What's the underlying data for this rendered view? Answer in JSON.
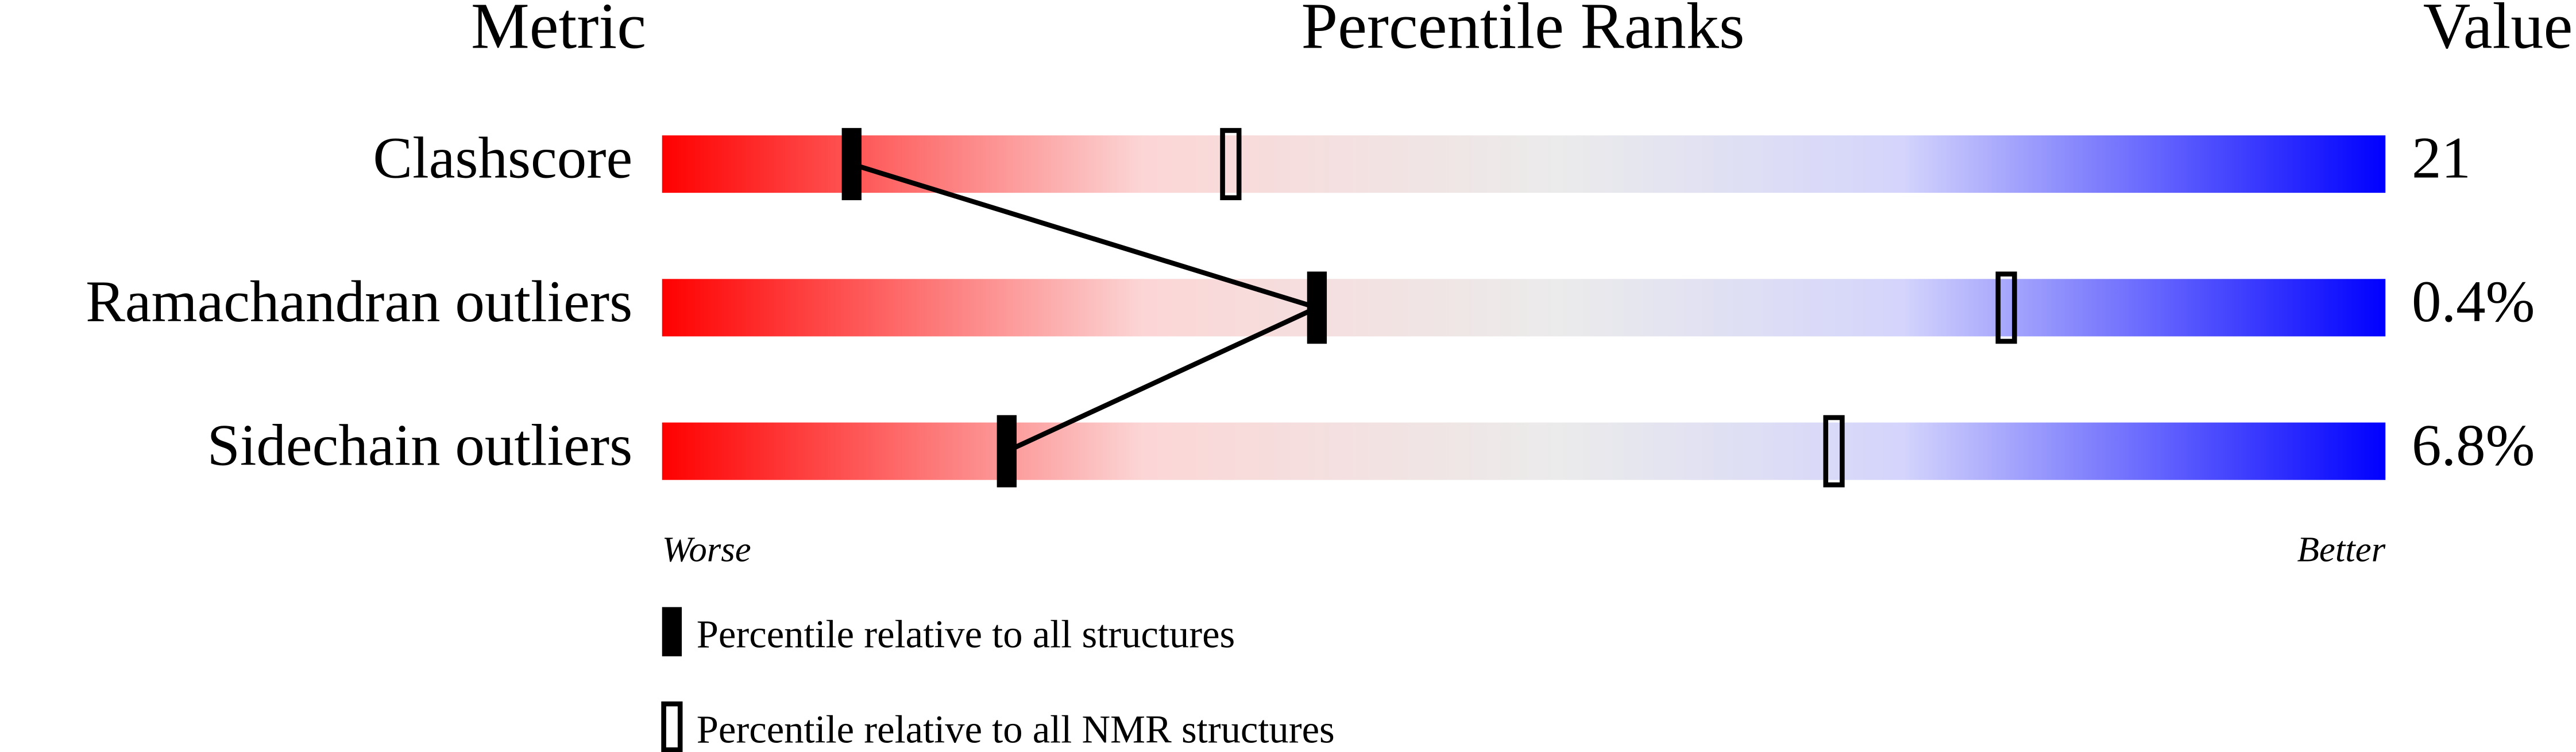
{
  "chart_data": {
    "type": "percentile-slider",
    "headers": {
      "metric": "Metric",
      "ranks": "Percentile Ranks",
      "value": "Value"
    },
    "categories": [
      "Clashscore",
      "Ramachandran outliers",
      "Sidechain outliers"
    ],
    "metric_values": [
      "21",
      "0.4%",
      "6.8%"
    ],
    "series": [
      {
        "name": "Percentile relative to all structures",
        "color": "#000000",
        "filled": true,
        "values": [
          11,
          38,
          20
        ]
      },
      {
        "name": "Percentile relative to all NMR structures",
        "color": "#000000",
        "filled": false,
        "values": [
          33,
          78,
          68
        ]
      }
    ],
    "xlim": [
      0,
      100
    ],
    "scale_labels": {
      "low": "Worse",
      "high": "Better"
    }
  }
}
